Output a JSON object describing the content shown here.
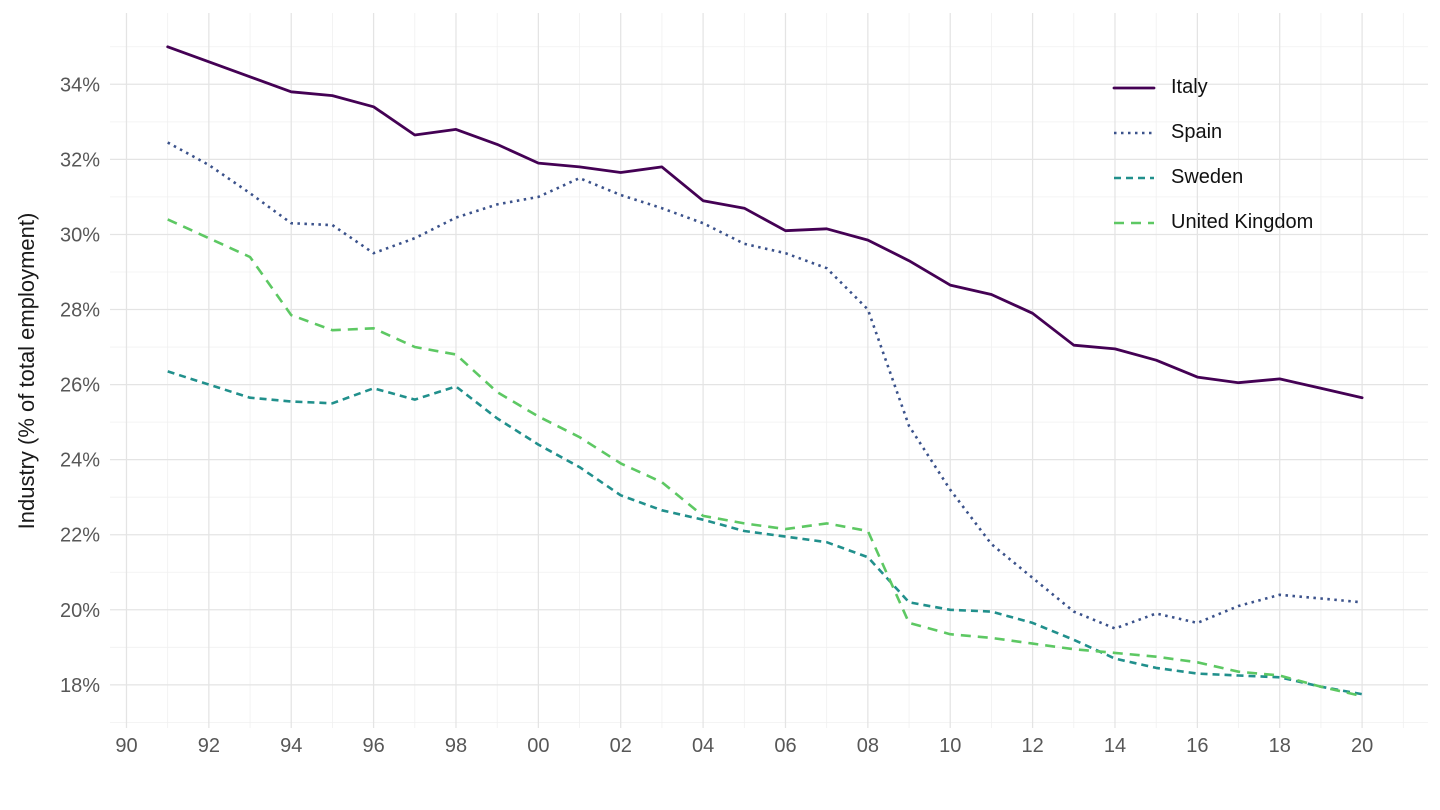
{
  "chart_data": {
    "type": "line",
    "title": "",
    "xlabel": "",
    "ylabel": "Industry (% of total employment)",
    "grid": "on",
    "legend_position": "inside-top-right",
    "xlim": [
      1989.6,
      2021.6
    ],
    "ylim": [
      16.85,
      35.9
    ],
    "x": [
      1991,
      1992,
      1993,
      1994,
      1995,
      1996,
      1997,
      1998,
      1999,
      2000,
      2001,
      2002,
      2003,
      2004,
      2005,
      2006,
      2007,
      2008,
      2009,
      2010,
      2011,
      2012,
      2013,
      2014,
      2015,
      2016,
      2017,
      2018,
      2019,
      2020
    ],
    "x_ticks": {
      "values": [
        1990,
        1992,
        1994,
        1996,
        1998,
        2000,
        2002,
        2004,
        2006,
        2008,
        2010,
        2012,
        2014,
        2016,
        2018,
        2020
      ],
      "labels": [
        "90",
        "92",
        "94",
        "96",
        "98",
        "00",
        "02",
        "04",
        "06",
        "08",
        "10",
        "12",
        "14",
        "16",
        "18",
        "20"
      ]
    },
    "y_ticks": {
      "values": [
        18,
        20,
        22,
        24,
        26,
        28,
        30,
        32,
        34
      ],
      "labels": [
        "18%",
        "20%",
        "22%",
        "24%",
        "26%",
        "28%",
        "30%",
        "32%",
        "34%"
      ]
    },
    "colors": {
      "background": "#ffffff",
      "grid_major": "#e4e4e4",
      "grid_minor": "#f0f0f0",
      "tick_text": "#575757",
      "axis_title_text": "#1a1a1a"
    },
    "series": [
      {
        "name": "Italy",
        "color": "#440154",
        "linetype": "solid",
        "values": [
          35.0,
          34.6,
          34.2,
          33.8,
          33.7,
          33.4,
          32.65,
          32.8,
          32.4,
          31.9,
          31.8,
          31.65,
          31.8,
          30.9,
          30.7,
          30.1,
          30.15,
          29.85,
          29.3,
          28.65,
          28.4,
          27.9,
          27.05,
          26.95,
          26.65,
          26.2,
          26.05,
          26.15,
          25.9,
          25.65
        ]
      },
      {
        "name": "Spain",
        "color": "#3B528B",
        "linetype": "dotted",
        "values": [
          32.45,
          31.85,
          31.1,
          30.3,
          30.25,
          29.5,
          29.9,
          30.45,
          30.8,
          31.0,
          31.5,
          31.05,
          30.7,
          30.3,
          29.75,
          29.5,
          29.1,
          28.0,
          24.9,
          23.2,
          21.75,
          20.85,
          19.95,
          19.5,
          19.9,
          19.65,
          20.1,
          20.4,
          20.3,
          20.2
        ]
      },
      {
        "name": "Sweden",
        "color": "#21908C",
        "linetype": "dashed",
        "values": [
          26.35,
          26.0,
          25.65,
          25.55,
          25.5,
          25.9,
          25.6,
          25.95,
          25.1,
          24.4,
          23.8,
          23.05,
          22.65,
          22.4,
          22.1,
          21.95,
          21.8,
          21.4,
          20.2,
          20.0,
          19.95,
          19.65,
          19.2,
          18.7,
          18.45,
          18.3,
          18.25,
          18.2,
          17.95,
          17.75
        ]
      },
      {
        "name": "United Kingdom",
        "color": "#5DC863",
        "linetype": "longdash",
        "values": [
          30.4,
          29.9,
          29.4,
          27.85,
          27.45,
          27.5,
          27.0,
          26.8,
          25.8,
          25.15,
          24.6,
          23.9,
          23.4,
          22.5,
          22.3,
          22.15,
          22.3,
          22.1,
          19.65,
          19.35,
          19.25,
          19.1,
          18.95,
          18.85,
          18.75,
          18.6,
          18.35,
          18.25,
          17.95,
          17.7
        ]
      }
    ]
  }
}
